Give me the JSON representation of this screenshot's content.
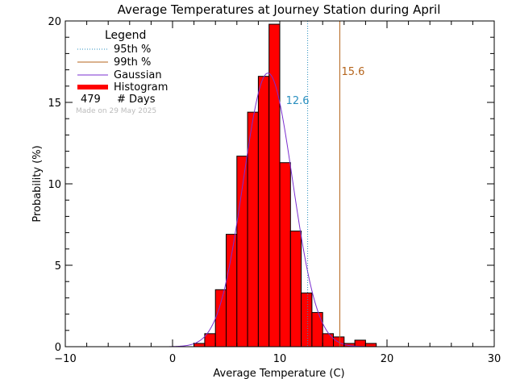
{
  "chart_data": {
    "type": "bar",
    "title": "Average Temperatures at Journey Station during April",
    "xlabel": "Average Temperature (C)",
    "ylabel": "Probability  (%)",
    "xlim": [
      -10,
      30
    ],
    "ylim": [
      0,
      20
    ],
    "x_ticks": [
      -10,
      0,
      10,
      20,
      30
    ],
    "y_ticks": [
      0,
      5,
      10,
      15,
      20
    ],
    "bin_width": 1,
    "histogram": [
      {
        "x0": 2,
        "x1": 3,
        "value": 0.2
      },
      {
        "x0": 3,
        "x1": 4,
        "value": 0.8
      },
      {
        "x0": 4,
        "x1": 5,
        "value": 3.5
      },
      {
        "x0": 5,
        "x1": 6,
        "value": 6.9
      },
      {
        "x0": 6,
        "x1": 7,
        "value": 11.7
      },
      {
        "x0": 7,
        "x1": 8,
        "value": 14.4
      },
      {
        "x0": 8,
        "x1": 9,
        "value": 16.6
      },
      {
        "x0": 9,
        "x1": 10,
        "value": 19.8
      },
      {
        "x0": 10,
        "x1": 11,
        "value": 11.3
      },
      {
        "x0": 11,
        "x1": 12,
        "value": 7.1
      },
      {
        "x0": 12,
        "x1": 13,
        "value": 3.3
      },
      {
        "x0": 13,
        "x1": 14,
        "value": 2.1
      },
      {
        "x0": 14,
        "x1": 15,
        "value": 0.8
      },
      {
        "x0": 15,
        "x1": 16,
        "value": 0.6
      },
      {
        "x0": 16,
        "x1": 17,
        "value": 0.2
      },
      {
        "x0": 17,
        "x1": 18,
        "value": 0.4
      },
      {
        "x0": 18,
        "x1": 19,
        "value": 0.2
      }
    ],
    "gaussian": {
      "mean": 8.9,
      "sigma": 2.3,
      "peak": 16.8
    },
    "percentiles": [
      {
        "name": "95th %",
        "value": 12.6,
        "label": "12.6",
        "color": "#2a8fbf",
        "style": "dotted"
      },
      {
        "name": "99th %",
        "value": 15.6,
        "label": "15.6",
        "color": "#b5651d",
        "style": "solid"
      }
    ],
    "colors": {
      "histogram": "#ff0000",
      "gaussian": "#7a2fd0",
      "p95": "#2a8fbf",
      "p99": "#b5651d"
    },
    "legend": {
      "title": "Legend",
      "placement": "top-left",
      "entries": [
        {
          "label": "95th %",
          "style": "dotted",
          "color": "#2a8fbf"
        },
        {
          "label": "99th %",
          "style": "solid",
          "color": "#b5651d"
        },
        {
          "label": "Gaussian",
          "style": "solid",
          "color": "#7a2fd0"
        },
        {
          "label": "Histogram",
          "style": "thick",
          "color": "#ff0000"
        }
      ],
      "days_count": "479",
      "days_label": "# Days",
      "made_on": "Made on 29 May 2025"
    }
  }
}
